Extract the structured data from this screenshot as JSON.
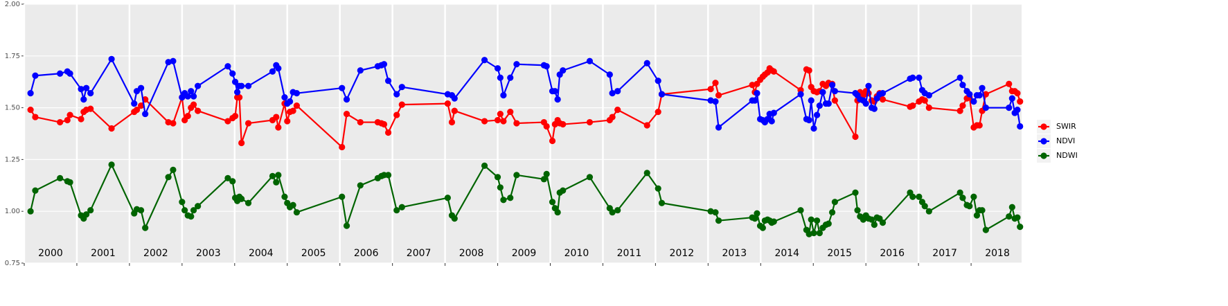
{
  "chart_data": {
    "type": "line",
    "x": [
      2000.12,
      2000.21,
      2000.68,
      2000.82,
      2000.87,
      2001.08,
      2001.13,
      2001.18,
      2001.26,
      2001.66,
      2002.09,
      2002.14,
      2002.22,
      2002.3,
      2002.74,
      2002.83,
      2003.0,
      2003.05,
      2003.11,
      2003.17,
      2003.22,
      2003.3,
      2003.87,
      2003.96,
      2004.01,
      2004.05,
      2004.09,
      2004.13,
      2004.26,
      2004.72,
      2004.79,
      2004.83,
      2004.95,
      2005.0,
      2005.05,
      2005.11,
      2005.18,
      2006.04,
      2006.13,
      2006.39,
      2006.72,
      2006.79,
      2006.84,
      2006.92,
      2007.08,
      2007.18,
      2008.05,
      2008.13,
      2008.18,
      2008.75,
      2009.0,
      2009.05,
      2009.11,
      2009.24,
      2009.36,
      2009.88,
      2009.93,
      2010.04,
      2010.09,
      2010.14,
      2010.18,
      2010.24,
      2010.75,
      2011.13,
      2011.18,
      2011.28,
      2011.84,
      2012.05,
      2012.12,
      2013.05,
      2013.14,
      2013.2,
      2013.84,
      2013.89,
      2013.93,
      2013.99,
      2014.04,
      2014.08,
      2014.13,
      2014.17,
      2014.21,
      2014.25,
      2014.76,
      2014.87,
      2014.92,
      2014.96,
      2015.01,
      2015.07,
      2015.12,
      2015.18,
      2015.24,
      2015.29,
      2015.36,
      2015.41,
      2015.8,
      2015.84,
      2015.89,
      2015.95,
      2016.0,
      2016.05,
      2016.11,
      2016.16,
      2016.21,
      2016.26,
      2016.32,
      2016.84,
      2016.89,
      2017.01,
      2017.07,
      2017.12,
      2017.2,
      2017.79,
      2017.84,
      2017.92,
      2017.97,
      2018.05,
      2018.11,
      2018.16,
      2018.21,
      2018.28,
      2018.72,
      2018.78,
      2018.83,
      2018.88,
      2018.93
    ],
    "series": [
      {
        "name": "SWIR",
        "color": "#FF0000",
        "values": [
          1.49,
          1.455,
          1.43,
          1.44,
          1.465,
          1.445,
          1.48,
          1.49,
          1.495,
          1.4,
          1.48,
          1.49,
          1.51,
          1.54,
          1.43,
          1.425,
          1.55,
          1.44,
          1.46,
          1.5,
          1.515,
          1.485,
          1.435,
          1.45,
          1.46,
          1.55,
          1.55,
          1.33,
          1.425,
          1.44,
          1.455,
          1.405,
          1.52,
          1.435,
          1.48,
          1.485,
          1.51,
          1.31,
          1.47,
          1.43,
          1.43,
          1.425,
          1.42,
          1.38,
          1.465,
          1.515,
          1.52,
          1.43,
          1.485,
          1.435,
          1.44,
          1.47,
          1.435,
          1.48,
          1.425,
          1.43,
          1.41,
          1.34,
          1.42,
          1.44,
          1.425,
          1.42,
          1.43,
          1.44,
          1.455,
          1.49,
          1.415,
          1.48,
          1.565,
          1.59,
          1.62,
          1.56,
          1.61,
          1.575,
          1.615,
          1.635,
          1.65,
          1.66,
          1.67,
          1.69,
          1.68,
          1.675,
          1.585,
          1.685,
          1.68,
          1.6,
          1.58,
          1.575,
          1.58,
          1.615,
          1.605,
          1.62,
          1.615,
          1.535,
          1.36,
          1.535,
          1.575,
          1.56,
          1.58,
          1.57,
          1.535,
          1.53,
          1.555,
          1.57,
          1.54,
          1.505,
          1.51,
          1.53,
          1.54,
          1.535,
          1.5,
          1.485,
          1.51,
          1.545,
          1.55,
          1.405,
          1.415,
          1.415,
          1.485,
          1.565,
          1.615,
          1.58,
          1.58,
          1.57,
          1.53
        ]
      },
      {
        "name": "NDVI",
        "color": "#0000FF",
        "values": [
          1.57,
          1.655,
          1.665,
          1.675,
          1.665,
          1.59,
          1.54,
          1.595,
          1.57,
          1.735,
          1.52,
          1.58,
          1.595,
          1.47,
          1.72,
          1.725,
          1.55,
          1.57,
          1.555,
          1.58,
          1.555,
          1.605,
          1.7,
          1.665,
          1.625,
          1.575,
          1.605,
          1.605,
          1.605,
          1.675,
          1.705,
          1.69,
          1.55,
          1.52,
          1.53,
          1.575,
          1.57,
          1.595,
          1.54,
          1.68,
          1.7,
          1.705,
          1.71,
          1.63,
          1.565,
          1.6,
          1.565,
          1.56,
          1.545,
          1.73,
          1.69,
          1.645,
          1.56,
          1.645,
          1.71,
          1.705,
          1.7,
          1.58,
          1.58,
          1.54,
          1.66,
          1.68,
          1.725,
          1.66,
          1.57,
          1.58,
          1.715,
          1.63,
          1.565,
          1.535,
          1.53,
          1.405,
          1.535,
          1.535,
          1.57,
          1.445,
          1.44,
          1.43,
          1.445,
          1.47,
          1.435,
          1.475,
          1.565,
          1.445,
          1.44,
          1.535,
          1.4,
          1.465,
          1.51,
          1.575,
          1.52,
          1.52,
          1.61,
          1.58,
          1.57,
          1.56,
          1.54,
          1.535,
          1.52,
          1.605,
          1.5,
          1.495,
          1.545,
          1.565,
          1.57,
          1.64,
          1.645,
          1.645,
          1.585,
          1.57,
          1.56,
          1.645,
          1.61,
          1.58,
          1.565,
          1.53,
          1.56,
          1.56,
          1.595,
          1.5,
          1.5,
          1.545,
          1.475,
          1.49,
          1.41
        ]
      },
      {
        "name": "NDWI",
        "color": "#006400",
        "values": [
          1.0,
          1.1,
          1.16,
          1.145,
          1.14,
          0.98,
          0.965,
          0.985,
          1.005,
          1.225,
          0.99,
          1.01,
          1.005,
          0.92,
          1.165,
          1.2,
          1.045,
          1.005,
          0.98,
          0.975,
          1.005,
          1.025,
          1.16,
          1.145,
          1.065,
          1.05,
          1.07,
          1.06,
          1.04,
          1.17,
          1.14,
          1.175,
          1.07,
          1.04,
          1.02,
          1.03,
          0.995,
          1.07,
          0.93,
          1.125,
          1.16,
          1.17,
          1.175,
          1.175,
          1.005,
          1.02,
          1.065,
          0.98,
          0.965,
          1.22,
          1.165,
          1.115,
          1.055,
          1.065,
          1.175,
          1.155,
          1.18,
          1.045,
          1.015,
          0.995,
          1.09,
          1.1,
          1.165,
          1.015,
          0.995,
          1.005,
          1.185,
          1.11,
          1.04,
          1.0,
          0.995,
          0.955,
          0.97,
          0.965,
          0.99,
          0.93,
          0.92,
          0.955,
          0.96,
          0.955,
          0.945,
          0.95,
          1.005,
          0.91,
          0.89,
          0.96,
          0.895,
          0.955,
          0.895,
          0.92,
          0.935,
          0.94,
          0.995,
          1.045,
          1.09,
          1.005,
          0.975,
          0.96,
          0.98,
          0.965,
          0.96,
          0.935,
          0.97,
          0.965,
          0.945,
          1.09,
          1.07,
          1.07,
          1.045,
          1.025,
          1.0,
          1.09,
          1.065,
          1.03,
          1.025,
          1.07,
          0.98,
          1.005,
          1.005,
          0.91,
          0.975,
          1.02,
          0.965,
          0.97,
          0.925
        ]
      }
    ],
    "xlim": [
      2000,
      2018.96
    ],
    "xticks": [
      2000,
      2001,
      2002,
      2003,
      2004,
      2005,
      2006,
      2007,
      2008,
      2009,
      2010,
      2011,
      2012,
      2013,
      2014,
      2015,
      2016,
      2017,
      2018
    ],
    "year_labels": [
      "2000",
      "2001",
      "2002",
      "2003",
      "2004",
      "2005",
      "2006",
      "2007",
      "2008",
      "2009",
      "2010",
      "2011",
      "2012",
      "2013",
      "2014",
      "2015",
      "2016",
      "2017",
      "2018"
    ],
    "ylim": [
      0.75,
      2.0
    ],
    "yticks": [
      {
        "value": 0.75,
        "label": "0.75"
      },
      {
        "value": 1.0,
        "label": "1.00"
      },
      {
        "value": 1.25,
        "label": "1.25"
      },
      {
        "value": 1.5,
        "label": "1.50"
      },
      {
        "value": 1.75,
        "label": "1.75"
      },
      {
        "value": 2.0,
        "label": "2.00"
      }
    ],
    "grid": true,
    "legend": "right"
  }
}
